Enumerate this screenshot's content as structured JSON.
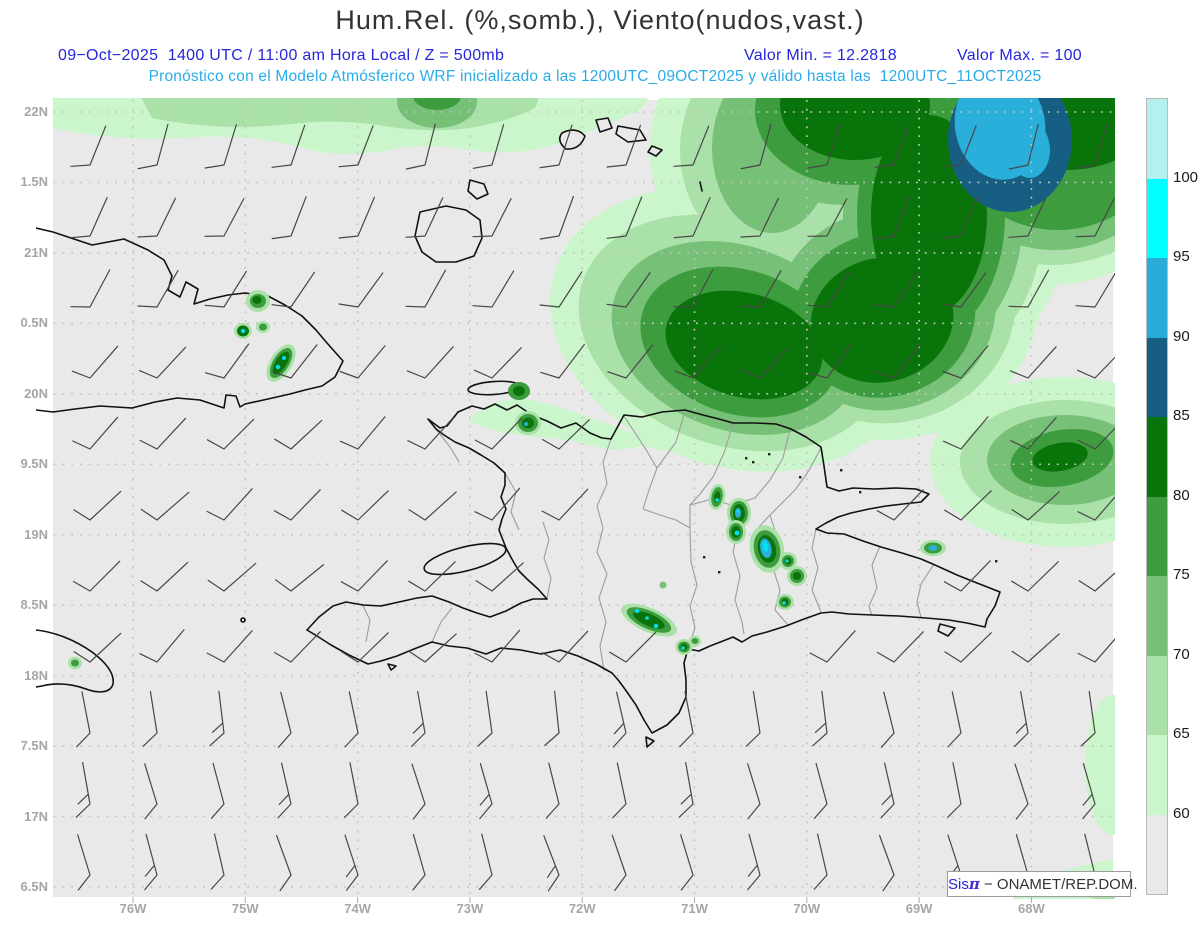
{
  "header": {
    "title": "Hum.Rel. (%,somb.), Viento(nudos,vast.)",
    "forecast_line": {
      "datetime": "09−Oct−2025  1400 UTC / 11:00 am Hora Local / Z = 500mb",
      "valor_min": "Valor Min. = 12.2818",
      "valor_max": "Valor Max. = 100"
    },
    "model_line": "Pronóstico con el Modelo Atmósferico WRF inicializado a las 1200UTC_09OCT2025 y válido hasta las  1200UTC_11OCT2025"
  },
  "map": {
    "lat_labels": [
      "22N",
      "1.5N",
      "21N",
      "0.5N",
      "20N",
      "9.5N",
      "19N",
      "8.5N",
      "18N",
      "7.5N",
      "17N",
      "6.5N"
    ],
    "lon_labels": [
      "76W",
      "75W",
      "74W",
      "73W",
      "72W",
      "71W",
      "70W",
      "69W",
      "68W"
    ],
    "branding": {
      "prefix": "Sis",
      "pi": "π",
      "org": " − ONAMET/REP.DOM."
    }
  },
  "colorbar": {
    "tick_labels": [
      "100",
      "95",
      "90",
      "85",
      "80",
      "75",
      "70",
      "65",
      "60"
    ],
    "segment_colors_top_to_bottom": [
      "#b4f0ee",
      "#00ffff",
      "#29abd8",
      "#175f82",
      "#097409",
      "#3d9c3d",
      "#77c077",
      "#a9e1a9",
      "#cbf6cb",
      "#e9e9e9"
    ]
  }
}
